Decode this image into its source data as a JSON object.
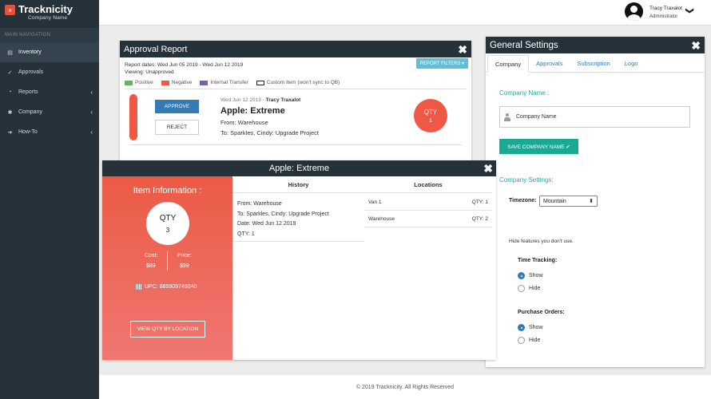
{
  "brand": {
    "name": "Tracknicity",
    "subtitle": "Company Name",
    "logo_glyph": "»"
  },
  "sidebar": {
    "section_title": "MAIN NAVIGATION",
    "items": [
      {
        "label": "Inventory",
        "icon": "boxes-icon",
        "glyph": "▤",
        "active": true,
        "chevron": ""
      },
      {
        "label": "Approvals",
        "icon": "check-icon",
        "glyph": "✓",
        "active": false,
        "chevron": ""
      },
      {
        "label": "Reports",
        "icon": "pie-chart-icon",
        "glyph": "◔",
        "active": false,
        "chevron": "‹"
      },
      {
        "label": "Company",
        "icon": "gear-icon",
        "glyph": "✱",
        "active": false,
        "chevron": "‹"
      },
      {
        "label": "How-To",
        "icon": "arrow-right-icon",
        "glyph": "➔",
        "active": false,
        "chevron": "‹"
      }
    ]
  },
  "user": {
    "name": "Tracy Traxalot",
    "role": "Administrator",
    "caret": "❯"
  },
  "approval": {
    "title": "Approval Report",
    "close": "✖",
    "dates": "Report dates: Wed Jun 05 2019 - Wed Jun 12 2019",
    "viewing": "Viewing: Unapproved",
    "filters_label": "REPORT FILTERS ▾",
    "legend": [
      {
        "label": "Positive",
        "color": "#5cb85c"
      },
      {
        "label": "Negative",
        "color": "#ee5844"
      },
      {
        "label": "Internal Transfer",
        "color": "#7b5fb5"
      },
      {
        "label": "Custom Item (won't sync to QB)",
        "color": "#ffffff"
      }
    ],
    "row": {
      "approve_label": "APPROVE",
      "reject_label": "REJECT",
      "meta_date": "Wed Jun 12 2019 - ",
      "meta_user": "Tracy Traxalot",
      "title": "Apple: Extreme",
      "from": "From: Warehouse",
      "to": "To: Sparkles, Cindy: Upgrade Project",
      "qty_label": "QTY",
      "qty_value": "1"
    }
  },
  "item_modal": {
    "title": "Apple: Extreme",
    "close": "✖",
    "info_title": "Item Information :",
    "qty_label": "QTY",
    "qty_value": "3",
    "cost_label": "Cost:",
    "cost_value": "$89",
    "price_label": "Price:",
    "price_value": "$99",
    "upc": "UPC: 885909746040",
    "view_qty_button": "VIEW QTY BY LOCATION",
    "history_header": "History",
    "history": {
      "from": "From: Warehouse",
      "to": "To: Sparkles, Cindy: Upgrade Project",
      "date": "Date: Wed Jun 12 2019",
      "qty": "QTY: 1"
    },
    "locations_header": "Locations",
    "locations": [
      {
        "name": "Van 1",
        "qty": "QTY: 1"
      },
      {
        "name": "Warehouse",
        "qty": "QTY: 2"
      }
    ]
  },
  "settings": {
    "title": "General Settings",
    "close": "✖",
    "tabs": [
      "Company",
      "Approvals",
      "Subscription",
      "Logo"
    ],
    "company_name_label": "Company Name :",
    "company_name_value": "Company Name",
    "save_button": "SAVE COMPANY NAME ✔",
    "company_settings_label": "Company Settings:",
    "timezone_label": "Timezone:",
    "timezone_value": "Mountain",
    "timezone_arrows": "⬍",
    "hide_note": "Hide features you don't use.",
    "time_tracking": {
      "title": "Time Tracking:",
      "show": "Show",
      "hide": "Hide",
      "selected": "show"
    },
    "purchase_orders": {
      "title": "Purchase Orders:",
      "show": "Show",
      "hide": "Hide",
      "selected": "show"
    }
  },
  "footer": {
    "text": "© 2019 Tracknicity. All Rights Reserved"
  }
}
